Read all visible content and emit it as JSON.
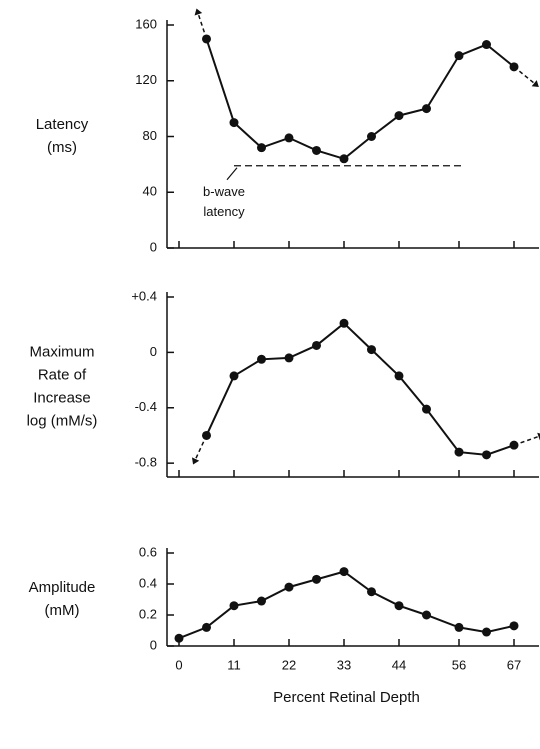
{
  "chart_data": [
    {
      "type": "line",
      "ylabel": [
        "Latency",
        "(ms)"
      ],
      "color": "#111111",
      "x": [
        5.5,
        11,
        16.5,
        22,
        27.5,
        33,
        38.5,
        44,
        49.5,
        56,
        61.5,
        67
      ],
      "values": [
        150,
        90,
        72,
        79,
        70,
        64,
        80,
        95,
        100,
        138,
        146,
        130
      ],
      "xlim": [
        -2.5,
        72
      ],
      "xticks": [
        0,
        11,
        22,
        33,
        44,
        56,
        67
      ],
      "xtick_labels": false,
      "ylim": [
        0,
        160
      ],
      "yticks": [
        0,
        40,
        80,
        120,
        160
      ],
      "reference_line": {
        "y": 59,
        "x": [
          11,
          57
        ]
      },
      "annotation": [
        "b-wave",
        "latency"
      ],
      "end_arrows": true
    },
    {
      "type": "line",
      "ylabel": [
        "Maximum",
        "Rate of",
        "Increase",
        "log (mM/s)"
      ],
      "color": "#111111",
      "x": [
        5.5,
        11,
        16.5,
        22,
        27.5,
        33,
        38.5,
        44,
        49.5,
        56,
        61.5,
        67
      ],
      "values": [
        -0.6,
        -0.17,
        -0.05,
        -0.04,
        0.05,
        0.21,
        0.02,
        -0.17,
        -0.41,
        -0.72,
        -0.74,
        -0.67
      ],
      "xlim": [
        -2.5,
        72
      ],
      "xticks": [
        0,
        11,
        22,
        33,
        44,
        56,
        67
      ],
      "xtick_labels": false,
      "ylim": [
        -0.9,
        0.4
      ],
      "yticks": [
        {
          "value": 0.4,
          "label": "+0.4"
        },
        0,
        -0.4,
        -0.8
      ],
      "end_arrows": true
    },
    {
      "type": "line",
      "ylabel": [
        "Amplitude",
        "(mM)"
      ],
      "color": "#111111",
      "xlabel": "Percent Retinal Depth",
      "x": [
        0,
        5.5,
        11,
        16.5,
        22,
        27.5,
        33,
        38.5,
        44,
        49.5,
        56,
        61.5,
        67
      ],
      "values": [
        0.05,
        0.12,
        0.26,
        0.29,
        0.38,
        0.43,
        0.48,
        0.35,
        0.26,
        0.2,
        0.12,
        0.09,
        0.13
      ],
      "xlim": [
        -2.5,
        72
      ],
      "xticks": [
        0,
        11,
        22,
        33,
        44,
        56,
        67
      ],
      "xtick_labels": true,
      "ylim": [
        0,
        0.6
      ],
      "yticks": [
        0,
        0.2,
        0.4,
        0.6
      ],
      "end_arrows": false
    }
  ]
}
